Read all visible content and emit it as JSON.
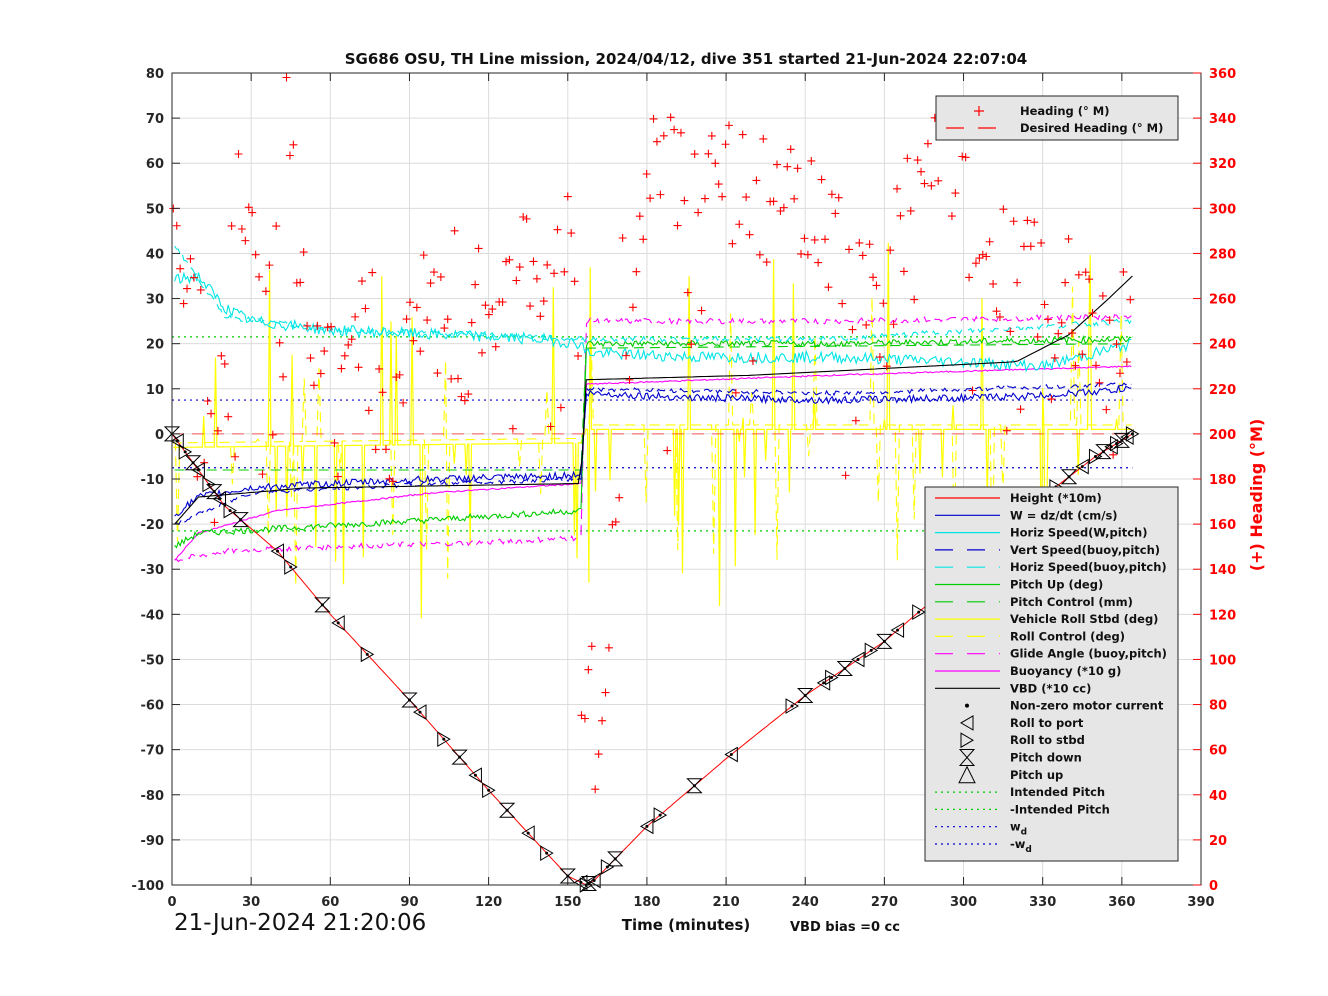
{
  "chart_data": {
    "type": "line",
    "title": "SG686 OSU, TH Line mission, 2024/04/12, dive 351 started 21-Jun-2024 22:07:04",
    "xlabel": "Time (minutes)",
    "ylabel_left": "",
    "ylabel_right": "(+) Heading (°M)",
    "xlim": [
      0,
      390
    ],
    "ylim_left": [
      -100,
      80
    ],
    "ylim_right": [
      0,
      360
    ],
    "xticks": [
      "0",
      "30",
      "60",
      "90",
      "120",
      "150",
      "180",
      "210",
      "240",
      "270",
      "300",
      "330",
      "360",
      "390"
    ],
    "yticks_left": [
      "80",
      "70",
      "60",
      "50",
      "40",
      "30",
      "20",
      "10",
      "0",
      "-10",
      "-20",
      "-30",
      "-40",
      "-50",
      "-60",
      "-70",
      "-80",
      "-90",
      "-100"
    ],
    "yticks_right": [
      "360",
      "340",
      "320",
      "300",
      "280",
      "260",
      "240",
      "220",
      "200",
      "180",
      "160",
      "140",
      "120",
      "100",
      "80",
      "60",
      "40",
      "20",
      "0"
    ],
    "grid": true,
    "timestamp": "21-Jun-2024 21:20:06",
    "vbd_bias": "VBD bias =0 cc",
    "legend_heading": [
      {
        "label": "Heading (° M)",
        "color": "#ff0000",
        "marker": "plus"
      },
      {
        "label": "Desired Heading (° M)",
        "color": "#ff0000",
        "style": "dashed"
      }
    ],
    "legend_main": [
      {
        "label": "Height (*10m)",
        "color": "#ff0000",
        "style": "solid"
      },
      {
        "label": "W = dz/dt (cm/s)",
        "color": "#0000cc",
        "style": "solid"
      },
      {
        "label": "Horiz Speed(W,pitch)",
        "color": "#00e5e5",
        "style": "solid"
      },
      {
        "label": "Vert Speed(buoy,pitch)",
        "color": "#0000cc",
        "style": "dashed"
      },
      {
        "label": "Horiz Speed(buoy,pitch)",
        "color": "#00e5e5",
        "style": "dashed"
      },
      {
        "label": "Pitch Up (deg)",
        "color": "#00cc00",
        "style": "solid"
      },
      {
        "label": "Pitch Control (mm)",
        "color": "#00cc00",
        "style": "dashed"
      },
      {
        "label": "Vehicle Roll Stbd (deg)",
        "color": "#ffff00",
        "style": "solid"
      },
      {
        "label": "Roll Control (deg)",
        "color": "#ffff00",
        "style": "dashed"
      },
      {
        "label": "Glide Angle (buoy,pitch)",
        "color": "#ff00ff",
        "style": "dashed"
      },
      {
        "label": "Buoyancy (*10 g)",
        "color": "#ff00ff",
        "style": "solid"
      },
      {
        "label": "VBD (*10 cc)",
        "color": "#000000",
        "style": "solid"
      },
      {
        "label": "Non-zero motor current",
        "color": "#000000",
        "marker": "dot"
      },
      {
        "label": "Roll to port",
        "color": "#000000",
        "marker": "tri-left"
      },
      {
        "label": "Roll to stbd",
        "color": "#000000",
        "marker": "tri-right"
      },
      {
        "label": "Pitch down",
        "color": "#000000",
        "marker": "hourglass"
      },
      {
        "label": "Pitch up",
        "color": "#000000",
        "marker": "tri-up"
      },
      {
        "label": "Intended Pitch",
        "color": "#00cc00",
        "style": "dotted"
      },
      {
        "label": "-Intended Pitch",
        "color": "#00cc00",
        "style": "dotted"
      },
      {
        "label": "w",
        "sub": "d",
        "color": "#0000cc",
        "style": "dotted"
      },
      {
        "label": "-w",
        "sub": "d",
        "color": "#0000cc",
        "style": "dotted"
      }
    ],
    "series": {
      "height_x10m": {
        "x": [
          0,
          20,
          40,
          60,
          90,
          120,
          150,
          157,
          160,
          180,
          210,
          240,
          270,
          300,
          330,
          350,
          364
        ],
        "y": [
          0,
          -16,
          -26,
          -40,
          -59,
          -79,
          -98,
          -100,
          -99,
          -87,
          -72,
          -58,
          -46,
          -31,
          -14,
          -5,
          0
        ]
      },
      "w_cm_s": {
        "x": [
          1,
          10,
          30,
          60,
          100,
          140,
          155,
          157,
          200,
          250,
          300,
          330,
          364
        ],
        "y": [
          -18,
          -14,
          -12,
          -11,
          -10,
          -9.5,
          -9,
          9,
          8,
          7.5,
          8,
          8.5,
          10
        ]
      },
      "horiz_speed_w_pitch": {
        "x": [
          1,
          10,
          20,
          30,
          60,
          100,
          140,
          155,
          157,
          200,
          250,
          300,
          330,
          364
        ],
        "y": [
          34,
          35,
          28,
          25,
          23,
          22,
          21,
          20,
          18,
          17,
          17,
          16,
          15,
          20
        ]
      },
      "vert_speed_buoy_pitch": {
        "x": [
          1,
          30,
          100,
          155,
          157,
          250,
          364
        ],
        "y": [
          -20,
          -13,
          -11,
          -10,
          10,
          9,
          11
        ]
      },
      "horiz_speed_buoy_pitch": {
        "x": [
          1,
          20,
          60,
          120,
          155,
          157,
          250,
          364
        ],
        "y": [
          42,
          26,
          23,
          22,
          21,
          21,
          21,
          25
        ]
      },
      "pitch_up_deg": {
        "x": [
          1,
          10,
          40,
          100,
          155,
          157,
          250,
          364
        ],
        "y": [
          -25,
          -22,
          -21,
          -19,
          -17,
          20,
          20,
          21
        ]
      },
      "pitch_control_mm": {
        "x": [
          1,
          20,
          155,
          157,
          364
        ],
        "y": [
          -8,
          -8,
          -8,
          19,
          20
        ]
      },
      "glide_angle_buoy_pitch": {
        "x": [
          1,
          20,
          60,
          120,
          155,
          157,
          250,
          364
        ],
        "y": [
          -28,
          -26,
          -25,
          -24,
          -23,
          25,
          25,
          26
        ]
      },
      "buoyancy_x10g": {
        "x": [
          1,
          10,
          40,
          100,
          155,
          157,
          250,
          364
        ],
        "y": [
          -28,
          -22,
          -17,
          -13,
          -11,
          11,
          13,
          15
        ]
      },
      "vbd_x10cc": {
        "x": [
          1,
          10,
          50,
          155,
          157,
          220,
          320,
          340,
          355,
          364
        ],
        "y": [
          -20,
          -14,
          -12,
          -11,
          12,
          13,
          16,
          22,
          30,
          35
        ]
      },
      "roll_stbd_deg_baseline": {
        "x": [
          0,
          155,
          157,
          364
        ],
        "y": [
          -3,
          -2,
          1,
          1
        ]
      },
      "intended_pitch": 21.5,
      "wd": 7.5,
      "heading_deg": {
        "x": [
          0,
          1,
          2,
          5,
          10,
          14,
          18,
          25,
          33,
          40,
          44,
          50,
          60,
          70,
          80,
          95,
          110,
          125,
          140,
          150,
          153,
          157,
          160,
          180,
          190,
          200,
          230,
          245,
          270,
          290,
          300,
          320,
          340,
          350,
          362
        ],
        "y": [
          330,
          300,
          260,
          250,
          270,
          180,
          200,
          310,
          260,
          300,
          350,
          250,
          230,
          260,
          190,
          260,
          240,
          270,
          270,
          300,
          270,
          60,
          30,
          320,
          320,
          320,
          300,
          290,
          260,
          340,
          300,
          270,
          260,
          250,
          240
        ]
      },
      "desired_heading_deg": 200
    }
  }
}
